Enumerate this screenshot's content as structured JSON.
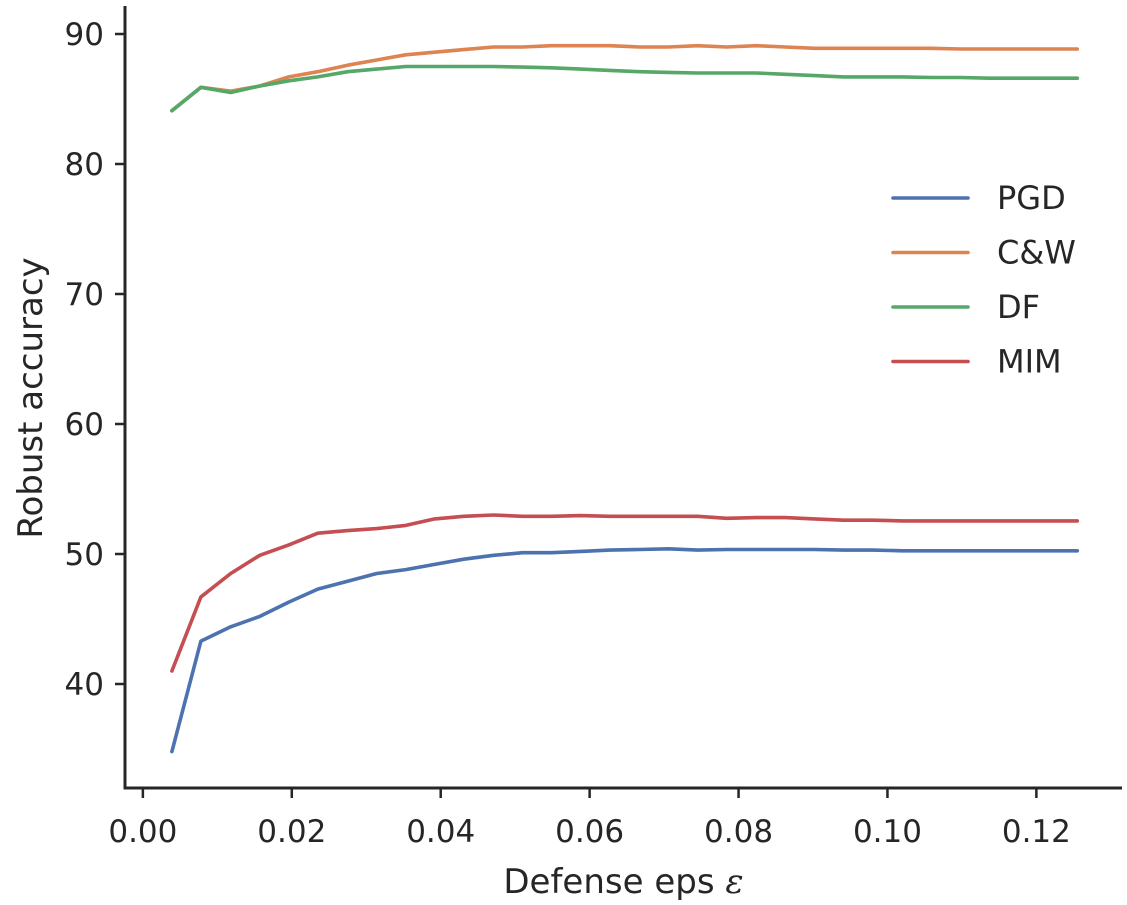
{
  "chart_data": {
    "type": "line",
    "title": "",
    "xlabel": "Defense eps",
    "xlabel_symbol": "ε",
    "ylabel": "Robust accuracy",
    "xlim": [
      -0.0024,
      0.1315
    ],
    "ylim": [
      32,
      92
    ],
    "xticks": [
      0.0,
      0.02,
      0.04,
      0.06,
      0.08,
      0.1,
      0.12
    ],
    "xtick_labels": [
      "0.00",
      "0.02",
      "0.04",
      "0.06",
      "0.08",
      "0.10",
      "0.12"
    ],
    "yticks": [
      40,
      50,
      60,
      70,
      80,
      90
    ],
    "ytick_labels": [
      "40",
      "50",
      "60",
      "70",
      "80",
      "90"
    ],
    "grid": false,
    "legend_position": "right",
    "x": [
      0.0039,
      0.0078,
      0.0118,
      0.0157,
      0.0196,
      0.0235,
      0.0275,
      0.0314,
      0.0353,
      0.0392,
      0.0431,
      0.0471,
      0.051,
      0.0549,
      0.0588,
      0.0627,
      0.0667,
      0.0706,
      0.0745,
      0.0784,
      0.0824,
      0.0863,
      0.0902,
      0.0941,
      0.098,
      0.102,
      0.1059,
      0.1098,
      0.1137,
      0.1176,
      0.1216,
      0.1255
    ],
    "series": [
      {
        "name": "PGD",
        "color": "#4c72b0",
        "values": [
          34.8,
          43.3,
          44.4,
          45.2,
          46.3,
          47.3,
          47.9,
          48.5,
          48.8,
          49.2,
          49.6,
          49.9,
          50.1,
          50.1,
          50.2,
          50.3,
          50.35,
          50.4,
          50.3,
          50.35,
          50.35,
          50.35,
          50.35,
          50.3,
          50.3,
          50.25,
          50.25,
          50.25,
          50.25,
          50.25,
          50.25,
          50.25
        ]
      },
      {
        "name": "C&W",
        "color": "#dd8452",
        "values": [
          84.1,
          85.9,
          85.6,
          86.0,
          86.7,
          87.1,
          87.6,
          88.0,
          88.4,
          88.6,
          88.8,
          89.0,
          89.0,
          89.1,
          89.1,
          89.1,
          89.0,
          89.0,
          89.1,
          89.0,
          89.1,
          89.0,
          88.9,
          88.9,
          88.9,
          88.9,
          88.9,
          88.85,
          88.85,
          88.85,
          88.85,
          88.85
        ]
      },
      {
        "name": "DF",
        "color": "#55a868",
        "values": [
          84.1,
          85.9,
          85.5,
          86.0,
          86.4,
          86.7,
          87.1,
          87.3,
          87.5,
          87.5,
          87.5,
          87.5,
          87.45,
          87.4,
          87.3,
          87.2,
          87.1,
          87.05,
          87.0,
          87.0,
          87.0,
          86.9,
          86.8,
          86.7,
          86.7,
          86.7,
          86.65,
          86.65,
          86.6,
          86.6,
          86.6,
          86.6
        ]
      },
      {
        "name": "MIM",
        "color": "#c44e52",
        "values": [
          41.0,
          46.7,
          48.5,
          49.9,
          50.7,
          51.6,
          51.8,
          51.95,
          52.2,
          52.7,
          52.9,
          53.0,
          52.9,
          52.9,
          52.95,
          52.9,
          52.9,
          52.9,
          52.9,
          52.75,
          52.8,
          52.8,
          52.7,
          52.6,
          52.6,
          52.55,
          52.55,
          52.55,
          52.55,
          52.55,
          52.55,
          52.55
        ]
      }
    ]
  }
}
